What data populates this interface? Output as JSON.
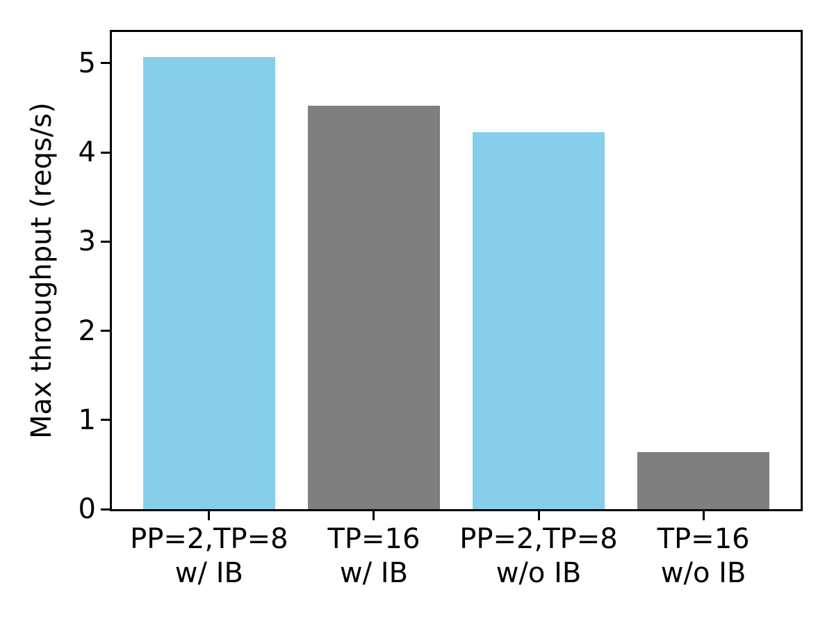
{
  "chart_data": {
    "type": "bar",
    "title": "",
    "xlabel": "",
    "ylabel": "Max throughput (reqs/s)",
    "categories": [
      [
        "PP=2,TP=8",
        "w/ IB"
      ],
      [
        "TP=16",
        "w/ IB"
      ],
      [
        "PP=2,TP=8",
        "w/o IB"
      ],
      [
        "TP=16",
        "w/o IB"
      ]
    ],
    "values": [
      5.07,
      4.52,
      4.23,
      0.64
    ],
    "bar_colors": [
      "#87CEEB",
      "#7F7F7F",
      "#87CEEB",
      "#7F7F7F"
    ],
    "yticks": [
      0,
      1,
      2,
      3,
      4,
      5
    ],
    "ytick_labels": [
      "0",
      "1",
      "2",
      "3",
      "4",
      "5"
    ],
    "ylim": [
      0,
      5.35
    ],
    "xlim": [
      -0.59,
      3.59
    ],
    "bar_width": 0.8,
    "grid": false,
    "legend": null,
    "axis_color": "#000000",
    "text_color": "#000000",
    "background": "#FFFFFF"
  }
}
